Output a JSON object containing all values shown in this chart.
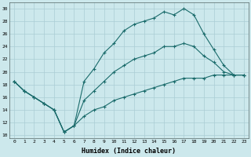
{
  "xlabel": "Humidex (Indice chaleur)",
  "background_color": "#cce8ec",
  "grid_color": "#aacdd4",
  "line_color": "#1a6b6b",
  "xlim": [
    -0.5,
    23.5
  ],
  "ylim": [
    9.5,
    31
  ],
  "yticks": [
    10,
    12,
    14,
    16,
    18,
    20,
    22,
    24,
    26,
    28,
    30
  ],
  "xticks": [
    0,
    1,
    2,
    3,
    4,
    5,
    6,
    7,
    8,
    9,
    10,
    11,
    12,
    13,
    14,
    15,
    16,
    17,
    18,
    19,
    20,
    21,
    22,
    23
  ],
  "line1_y": [
    18.5,
    17.0,
    16.0,
    15.0,
    14.0,
    10.5,
    11.5,
    18.5,
    20.5,
    23.0,
    24.5,
    26.5,
    27.5,
    28.0,
    28.5,
    29.5,
    29.0,
    30.0,
    29.0,
    26.0,
    23.5,
    21.0,
    19.5,
    19.5
  ],
  "line2_y": [
    18.5,
    17.0,
    16.0,
    15.0,
    14.0,
    10.5,
    11.5,
    13.0,
    14.0,
    14.5,
    15.5,
    16.0,
    16.5,
    17.0,
    17.5,
    18.0,
    18.5,
    19.0,
    19.0,
    19.0,
    19.5,
    19.5,
    19.5,
    19.5
  ],
  "line3_y": [
    18.5,
    17.0,
    16.0,
    15.0,
    14.0,
    10.5,
    11.5,
    15.5,
    17.0,
    18.5,
    20.0,
    21.0,
    22.0,
    22.5,
    23.0,
    24.0,
    24.0,
    24.5,
    24.0,
    22.5,
    21.5,
    20.0,
    19.5,
    19.5
  ]
}
